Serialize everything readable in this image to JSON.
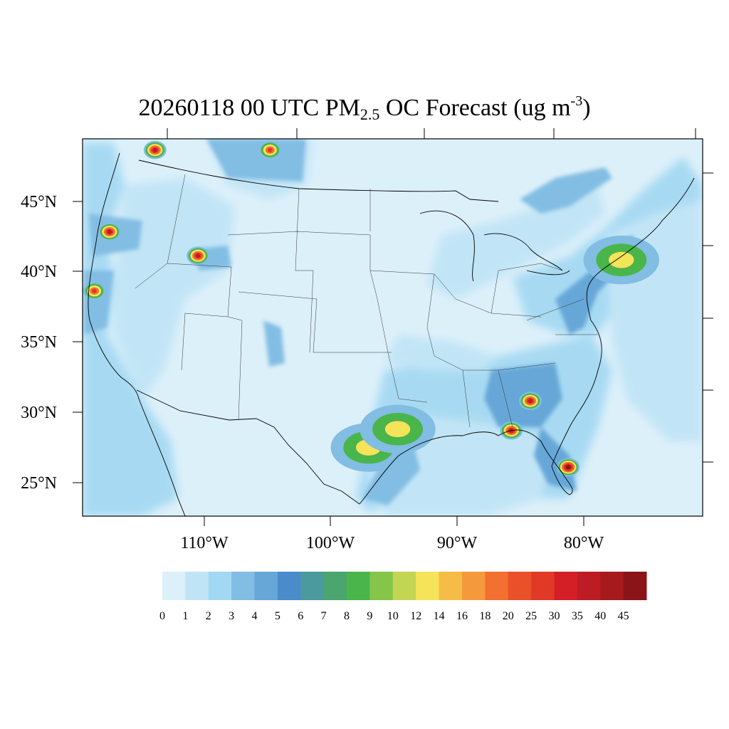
{
  "title": {
    "prefix": "20260118 00 UTC PM",
    "subscript": "2.5",
    "middle": " OC Forecast (ug m",
    "superscript": "-3",
    "suffix": ")"
  },
  "map": {
    "background_color": "#dcf0fa",
    "latitude_labels": [
      "45°N",
      "40°N",
      "35°N",
      "30°N",
      "25°N"
    ],
    "longitude_labels": [
      "110°W",
      "100°W",
      "90°W",
      "80°W"
    ]
  },
  "colorbar": {
    "labels": [
      "0",
      "1",
      "2",
      "3",
      "4",
      "5",
      "6",
      "7",
      "8",
      "9",
      "10",
      "12",
      "14",
      "16",
      "18",
      "20",
      "25",
      "30",
      "35",
      "40",
      "45"
    ],
    "colors": [
      "#dcf0fa",
      "#bfe4f6",
      "#a2d8f2",
      "#82bde3",
      "#66a7d8",
      "#4a8bcc",
      "#4a9a9e",
      "#4aa56e",
      "#4ab54a",
      "#84c54a",
      "#c2d654",
      "#f5e35a",
      "#f5bc48",
      "#f59a3c",
      "#f27030",
      "#ea5129",
      "#e03a26",
      "#d41f27",
      "#be1c24",
      "#a61a1e",
      "#8a1418"
    ]
  },
  "features": [
    {
      "name": "smoke-plume-canada",
      "lon": -104.8,
      "lat": 48.6,
      "max": 30
    },
    {
      "name": "hotspot-washington",
      "lon": -113.9,
      "lat": 48.6,
      "max": 35
    },
    {
      "name": "hotspot-oregon-coast",
      "lon": -117.5,
      "lat": 42.8,
      "max": 35
    },
    {
      "name": "hotspot-utah",
      "lon": -110.5,
      "lat": 41.1,
      "max": 35
    },
    {
      "name": "hotspot-sierra",
      "lon": -118.7,
      "lat": 38.6,
      "max": 25
    },
    {
      "name": "hotspot-georgia",
      "lon": -84.2,
      "lat": 30.8,
      "max": 35
    },
    {
      "name": "hotspot-panhandle",
      "lon": -85.7,
      "lat": 28.7,
      "max": 40
    },
    {
      "name": "hotspot-south-florida",
      "lon": -81.2,
      "lat": 26.1,
      "max": 45
    },
    {
      "name": "plume-texas-coast",
      "lon": -97.0,
      "lat": 27.5,
      "max": 12
    },
    {
      "name": "plume-louisiana",
      "lon": -94.7,
      "lat": 28.8,
      "max": 14
    },
    {
      "name": "plume-new-york",
      "lon": -77.0,
      "lat": 40.8,
      "max": 14
    }
  ]
}
